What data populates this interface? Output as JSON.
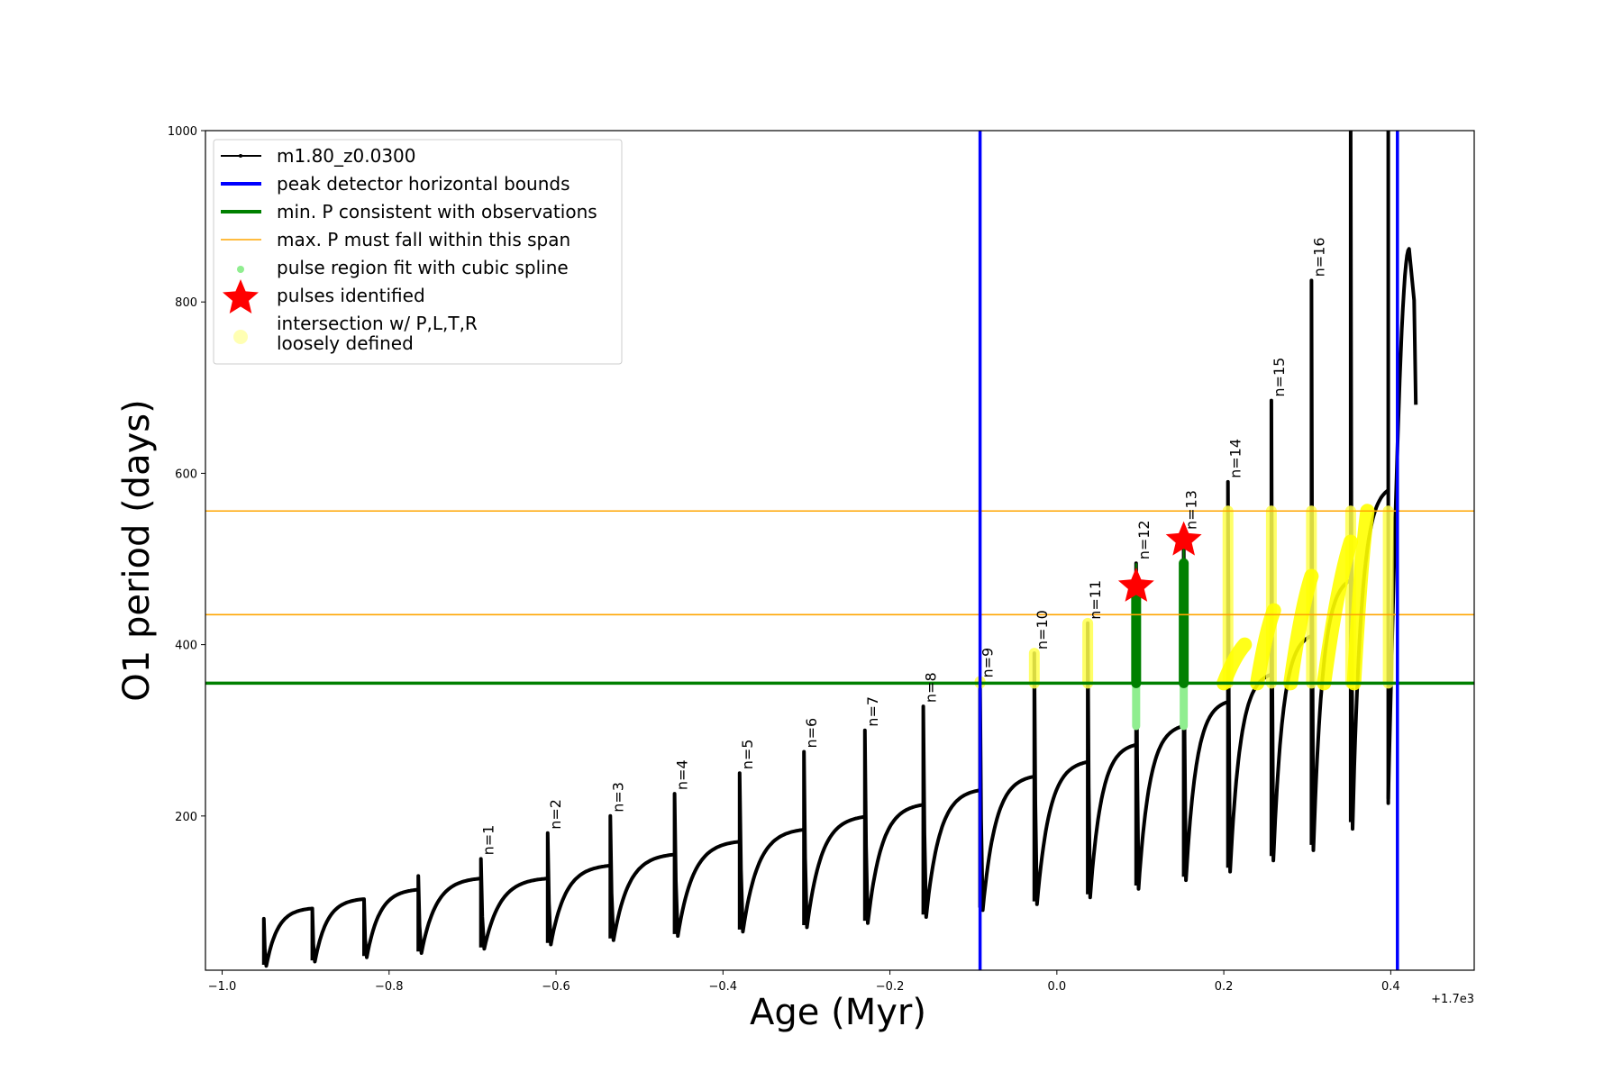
{
  "chart_data": {
    "type": "line",
    "xlabel": "Age (Myr)",
    "ylabel": "O1 period (days)",
    "x_offset_label": "+1.7e3",
    "xlim": [
      -1.02,
      0.5
    ],
    "ylim": [
      20,
      1000
    ],
    "x_ticks": [
      {
        "value": -1.0,
        "label": "−1.0"
      },
      {
        "value": -0.8,
        "label": "−0.8"
      },
      {
        "value": -0.6,
        "label": "−0.6"
      },
      {
        "value": -0.4,
        "label": "−0.4"
      },
      {
        "value": -0.2,
        "label": "−0.2"
      },
      {
        "value": 0.0,
        "label": "0.0"
      },
      {
        "value": 0.2,
        "label": "0.2"
      },
      {
        "value": 0.4,
        "label": "0.4"
      }
    ],
    "y_ticks": [
      {
        "value": 200,
        "label": "200"
      },
      {
        "value": 400,
        "label": "400"
      },
      {
        "value": 600,
        "label": "600"
      },
      {
        "value": 800,
        "label": "800"
      },
      {
        "value": 1000,
        "label": "1000"
      }
    ],
    "grid": false,
    "legend_position": "top-left",
    "legend": [
      {
        "label": "m1.80_z0.0300",
        "kind": "line-marker",
        "color": "#000000"
      },
      {
        "label": "peak detector horizontal bounds",
        "kind": "line",
        "color": "#0000ff"
      },
      {
        "label": "min. P consistent with observations",
        "kind": "line",
        "color": "#008000"
      },
      {
        "label": "max. P must fall within this span",
        "kind": "thin-line",
        "color": "#ffa500"
      },
      {
        "label": "pulse region fit with cubic spline",
        "kind": "dot",
        "color": "#90ee90"
      },
      {
        "label": "pulses identified",
        "kind": "star",
        "color": "#ff0000"
      },
      {
        "label": "intersection w/ P,L,T,R",
        "label2": "loosely defined",
        "kind": "bigdot",
        "color": "#ffffb3"
      }
    ],
    "vertical_bounds": [
      -0.092,
      0.408
    ],
    "min_period_line": 355,
    "max_period_span": [
      435,
      556
    ],
    "pulses": [
      {
        "n": "n=1",
        "t": -0.69,
        "start": 25,
        "peak": 150,
        "min": 45,
        "end": 127
      },
      {
        "n": "n=2",
        "t": -0.61,
        "start": 127,
        "peak": 180,
        "min": 50,
        "end": 142
      },
      {
        "n": "n=3",
        "t": -0.535,
        "start": 142,
        "peak": 200,
        "min": 55,
        "end": 155
      },
      {
        "n": "n=4",
        "t": -0.458,
        "start": 155,
        "peak": 226,
        "min": 60,
        "end": 170
      },
      {
        "n": "n=5",
        "t": -0.38,
        "start": 170,
        "peak": 250,
        "min": 65,
        "end": 184
      },
      {
        "n": "n=6",
        "t": -0.303,
        "start": 184,
        "peak": 275,
        "min": 70,
        "end": 199
      },
      {
        "n": "n=7",
        "t": -0.23,
        "start": 199,
        "peak": 300,
        "min": 75,
        "end": 213
      },
      {
        "n": "n=8",
        "t": -0.16,
        "start": 213,
        "peak": 328,
        "min": 82,
        "end": 230
      },
      {
        "n": "n=9",
        "t": -0.092,
        "start": 230,
        "peak": 357,
        "min": 90,
        "end": 246
      },
      {
        "n": "n=10",
        "t": -0.027,
        "start": 246,
        "peak": 390,
        "min": 97,
        "end": 263
      },
      {
        "n": "n=11",
        "t": 0.037,
        "start": 263,
        "peak": 425,
        "min": 105,
        "end": 283
      },
      {
        "n": "n=12",
        "t": 0.095,
        "start": 283,
        "peak": 495,
        "min": 115,
        "end": 305
      },
      {
        "n": "n=13",
        "t": 0.152,
        "start": 305,
        "peak": 530,
        "min": 125,
        "end": 333
      },
      {
        "n": "n=14",
        "t": 0.205,
        "start": 333,
        "peak": 590,
        "min": 135,
        "end": 365
      },
      {
        "n": "n=15",
        "t": 0.257,
        "start": 365,
        "peak": 685,
        "min": 148,
        "end": 410
      },
      {
        "n": "n=16",
        "t": 0.305,
        "start": 410,
        "peak": 825,
        "min": 160,
        "end": 475
      },
      {
        "n": "",
        "t": 0.352,
        "start": 475,
        "peak": 1000,
        "min": 185,
        "end": 580
      },
      {
        "n": "",
        "t": 0.397,
        "start": 580,
        "peak": 1000,
        "min": 215,
        "end": 800
      }
    ],
    "pre_pulse_cycles": [
      {
        "t": -0.95,
        "peak": 80,
        "min": 25,
        "end": 92
      },
      {
        "t": -0.892,
        "peak": 92,
        "min": 30,
        "end": 103
      },
      {
        "t": -0.83,
        "peak": 103,
        "min": 35,
        "end": 114
      },
      {
        "t": -0.765,
        "peak": 130,
        "min": 40,
        "end": 127
      }
    ],
    "tail": {
      "t_start": 0.397,
      "peak_t": 0.422,
      "peak_p": 862,
      "end_t": 0.43,
      "end_p": 680
    },
    "pulses_identified": [
      {
        "x": 0.095,
        "y": 468
      },
      {
        "x": 0.152,
        "y": 522
      }
    ]
  }
}
